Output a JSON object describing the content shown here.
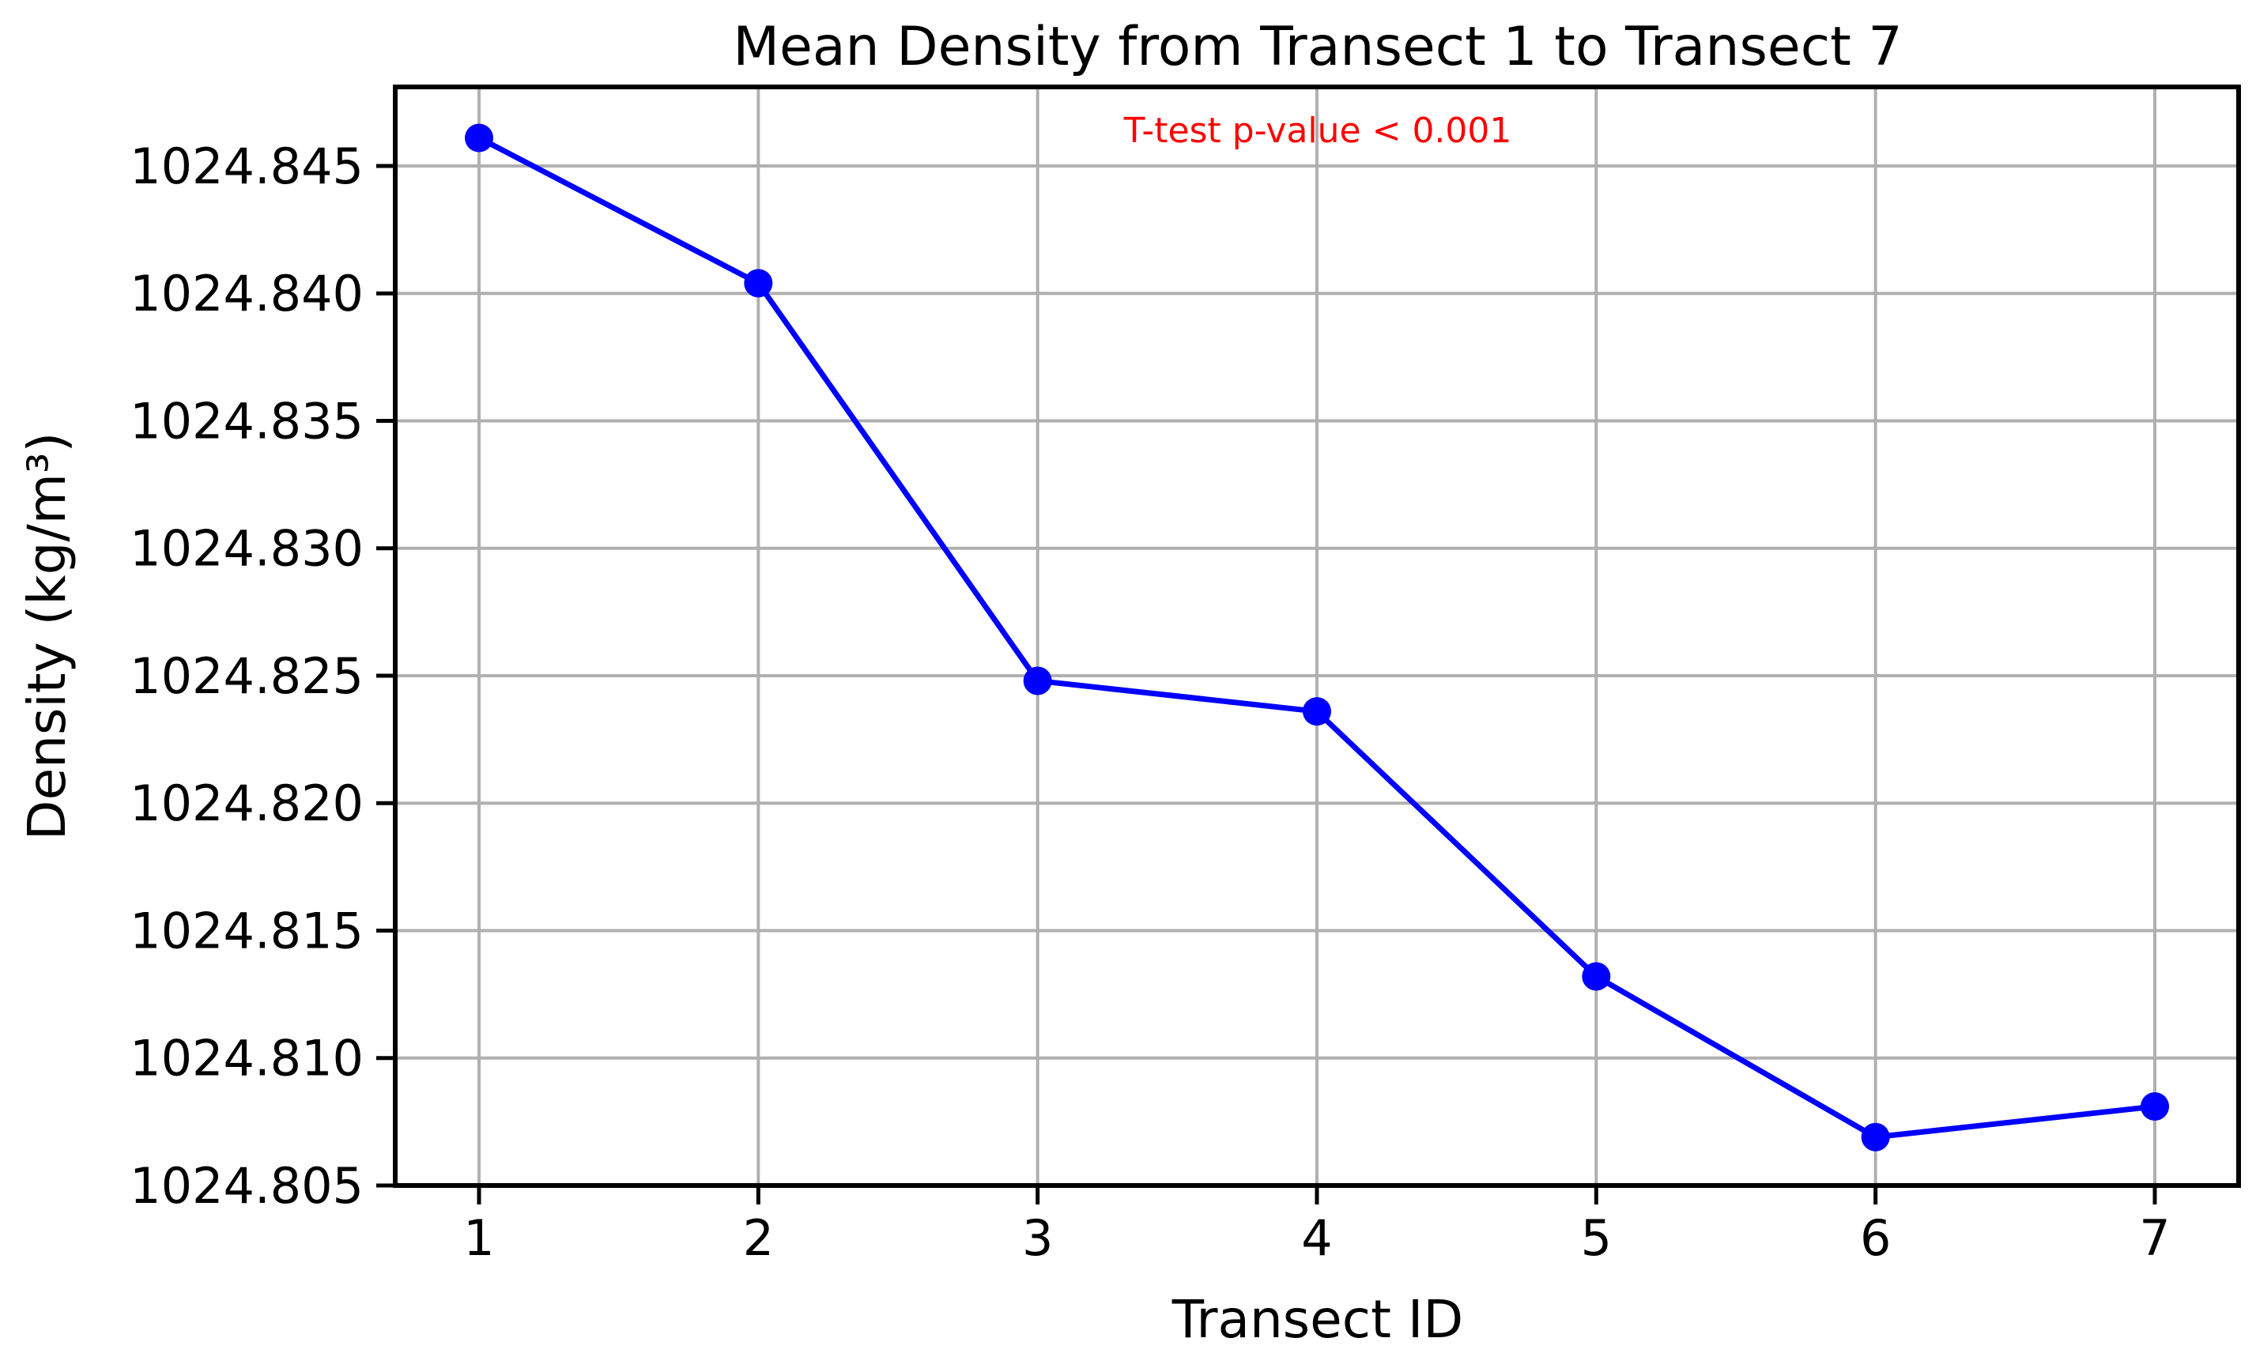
{
  "chart_data": {
    "type": "line",
    "title": "Mean Density from Transect 1 to Transect 7",
    "xlabel": "Transect ID",
    "ylabel": "Density (kg/m³)",
    "x": [
      1,
      2,
      3,
      4,
      5,
      6,
      7
    ],
    "xticks": [
      "1",
      "2",
      "3",
      "4",
      "5",
      "6",
      "7"
    ],
    "xlim": [
      0.7,
      7.3
    ],
    "yticks": [
      "1024.805",
      "1024.810",
      "1024.815",
      "1024.820",
      "1024.825",
      "1024.830",
      "1024.835",
      "1024.840",
      "1024.845"
    ],
    "ytick_values": [
      1024.805,
      1024.81,
      1024.815,
      1024.82,
      1024.825,
      1024.83,
      1024.835,
      1024.84,
      1024.845
    ],
    "ylim": [
      1024.805,
      1024.8481
    ],
    "series": [
      {
        "values": [
          1024.8461,
          1024.8404,
          1024.8248,
          1024.8236,
          1024.8132,
          1024.8069,
          1024.8081
        ],
        "color": "#0000ff"
      }
    ],
    "grid": true,
    "annotation": {
      "text": "T-test p-value < 0.001",
      "color": "#ff0000"
    }
  }
}
